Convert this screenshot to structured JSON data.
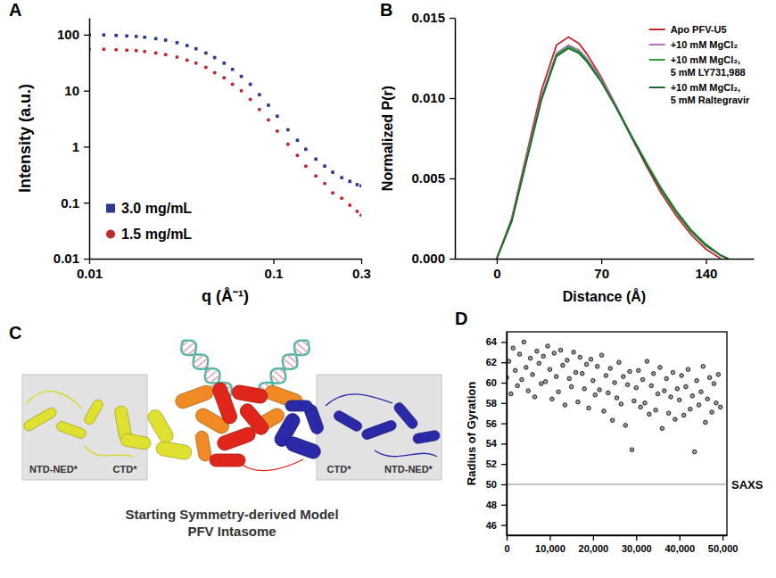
{
  "chart_data": [
    {
      "panel": "A",
      "type": "scatter",
      "log": true,
      "x_label": "q (Å⁻¹)",
      "y_label": "Intensity (a.u.)",
      "x": [
        0.01,
        0.012,
        0.014,
        0.016,
        0.018,
        0.02,
        0.023,
        0.026,
        0.03,
        0.034,
        0.038,
        0.043,
        0.048,
        0.054,
        0.06,
        0.067,
        0.075,
        0.084,
        0.094,
        0.105,
        0.12,
        0.135,
        0.15,
        0.17,
        0.19,
        0.21,
        0.235,
        0.26,
        0.285,
        0.3
      ],
      "series": [
        {
          "name": "3.0 mg/mL",
          "color": "#2b3990",
          "marker": "square",
          "values": [
            100,
            99,
            97,
            95,
            93,
            90,
            85,
            80,
            72,
            64,
            56,
            47,
            39,
            31,
            24,
            18,
            13,
            8.5,
            5.5,
            3.5,
            2,
            1.3,
            0.9,
            0.6,
            0.45,
            0.35,
            0.28,
            0.24,
            0.21,
            0.2
          ]
        },
        {
          "name": "1.5 mg/mL",
          "color": "#c1272d",
          "marker": "circle",
          "values": [
            55,
            55,
            54,
            53,
            52,
            50,
            47,
            44,
            40,
            35,
            31,
            26,
            21,
            17,
            13,
            10,
            7,
            4.6,
            3,
            1.9,
            1.1,
            0.7,
            0.45,
            0.3,
            0.22,
            0.15,
            0.12,
            0.09,
            0.07,
            0.06
          ]
        }
      ],
      "xlim": [
        0.01,
        0.3
      ],
      "ylim": [
        0.01,
        200
      ],
      "xticks": [
        0.01,
        0.1,
        0.3
      ],
      "yticks": [
        0.01,
        0.1,
        1,
        10,
        100
      ],
      "legend": "lower left"
    },
    {
      "panel": "B",
      "type": "line",
      "x_label": "Distance (Å)",
      "y_label": "Normalized P(r)",
      "x": [
        0,
        10,
        20,
        30,
        40,
        48,
        55,
        60,
        70,
        80,
        90,
        100,
        110,
        120,
        130,
        140,
        150,
        155
      ],
      "series": [
        {
          "name": "Apo PFV-U5",
          "color": "#c0282d",
          "values": [
            0,
            0.0025,
            0.0065,
            0.0105,
            0.0133,
            0.0138,
            0.0134,
            0.0128,
            0.0113,
            0.0095,
            0.0076,
            0.0058,
            0.0041,
            0.0027,
            0.0015,
            0.0006,
            0,
            null
          ]
        },
        {
          "name": "+10 mM MgCl₂",
          "color": "#b86fc4",
          "values": [
            0,
            0.0024,
            0.0063,
            0.0101,
            0.0128,
            0.0133,
            0.013,
            0.0125,
            0.0112,
            0.0095,
            0.0077,
            0.006,
            0.0044,
            0.003,
            0.0018,
            0.0009,
            0.0002,
            0
          ]
        },
        {
          "name": "+10 mM MgCl₂, 5 mM LY731,988",
          "color": "#2e9e3e",
          "values": [
            0,
            0.0024,
            0.0062,
            0.01,
            0.0127,
            0.0132,
            0.0129,
            0.0124,
            0.0111,
            0.0094,
            0.0077,
            0.006,
            0.0044,
            0.003,
            0.0018,
            0.0009,
            0.0002,
            0
          ]
        },
        {
          "name": "+10 mM MgCl₂, 5 mM Raltegravir",
          "color": "#1a6b2a",
          "values": [
            0,
            0.0023,
            0.0061,
            0.0099,
            0.0126,
            0.0131,
            0.0128,
            0.0123,
            0.011,
            0.0094,
            0.0076,
            0.0059,
            0.0043,
            0.0029,
            0.0017,
            0.0008,
            0.0002,
            0
          ]
        }
      ],
      "xlim": [
        -28,
        172
      ],
      "ylim": [
        0,
        0.015
      ],
      "xticks": [
        0,
        70,
        140
      ],
      "yticks": [
        {
          "value": 0,
          "label": "0.000"
        },
        {
          "value": 0.005,
          "label": "0.005"
        },
        {
          "value": 0.01,
          "label": "0.010"
        },
        {
          "value": 0.015,
          "label": "0.015"
        }
      ],
      "legend": "upper right"
    },
    {
      "panel": "D",
      "type": "scatter",
      "y_label": "Radius of Gyration",
      "x": [
        0,
        500,
        1000,
        1500,
        2000,
        2500,
        3000,
        3500,
        4000,
        4500,
        5000,
        5500,
        6000,
        6500,
        7000,
        7500,
        8000,
        8500,
        9000,
        9500,
        10000,
        10500,
        11000,
        11500,
        12000,
        12500,
        13000,
        13500,
        14000,
        14500,
        15000,
        15500,
        16000,
        16500,
        17000,
        17500,
        18000,
        18500,
        19000,
        19500,
        20000,
        20500,
        21000,
        21500,
        22000,
        22500,
        23000,
        23500,
        24000,
        24500,
        25000,
        25500,
        26000,
        26500,
        27000,
        27500,
        28000,
        28500,
        29000,
        29500,
        30000,
        30500,
        31000,
        31500,
        32000,
        32500,
        33000,
        33500,
        34000,
        34500,
        35000,
        35500,
        36000,
        36500,
        37000,
        37500,
        38000,
        38500,
        39000,
        39500,
        40000,
        40500,
        41000,
        41500,
        42000,
        42500,
        43000,
        43500,
        44000,
        44500,
        45000,
        45500,
        46000,
        46500,
        47000,
        47500,
        48000,
        48500,
        49000,
        49500
      ],
      "series": [
        {
          "color": "#000000",
          "marker": "circle_open",
          "values": [
            60.5,
            62.1,
            58.9,
            63.4,
            61.2,
            59.7,
            62.8,
            60.3,
            64.0,
            61.5,
            59.2,
            62.4,
            60.8,
            58.6,
            63.1,
            61.9,
            59.9,
            62.6,
            60.1,
            63.6,
            61.3,
            58.4,
            62.9,
            60.6,
            59.1,
            63.2,
            61.7,
            57.8,
            62.2,
            60.4,
            59.6,
            63.0,
            61.0,
            58.1,
            62.5,
            60.9,
            59.4,
            61.8,
            57.5,
            62.3,
            60.2,
            58.8,
            61.6,
            59.3,
            62.7,
            57.2,
            60.7,
            59.0,
            61.4,
            56.3,
            60.0,
            58.5,
            62.0,
            57.9,
            60.6,
            55.8,
            59.8,
            61.1,
            53.4,
            58.2,
            59.5,
            61.2,
            57.6,
            60.3,
            58.0,
            62.1,
            56.9,
            59.7,
            60.9,
            57.3,
            58.9,
            61.5,
            55.5,
            59.2,
            60.4,
            57.0,
            58.6,
            61.0,
            56.4,
            59.4,
            58.3,
            60.7,
            56.8,
            59.6,
            61.3,
            57.4,
            58.7,
            53.2,
            60.2,
            57.8,
            59.1,
            61.6,
            56.1,
            58.4,
            60.5,
            57.1,
            59.9,
            58.0,
            60.8,
            57.6
          ]
        }
      ],
      "xlim": [
        0,
        51000
      ],
      "ylim": [
        45,
        65
      ],
      "xticks": [
        0,
        {
          "value": 10000,
          "label": "10,000"
        },
        {
          "value": 20000,
          "label": "20,000"
        },
        {
          "value": 30000,
          "label": "30,000"
        },
        {
          "value": 40000,
          "label": "40,000"
        },
        {
          "value": 50000,
          "label": "50,000"
        }
      ],
      "yticks": [
        46,
        48,
        50,
        52,
        54,
        56,
        58,
        60,
        62,
        64
      ],
      "annotations": [
        {
          "y": 50,
          "text": "SAXS"
        }
      ]
    }
  ],
  "diagram": {
    "panel": "C",
    "labels": [
      "NTD-NED*",
      "CTD*",
      "CTD*",
      "NTD-NED*"
    ],
    "title": [
      "Starting Symmetry-derived Model",
      "PFV Intasome"
    ]
  }
}
